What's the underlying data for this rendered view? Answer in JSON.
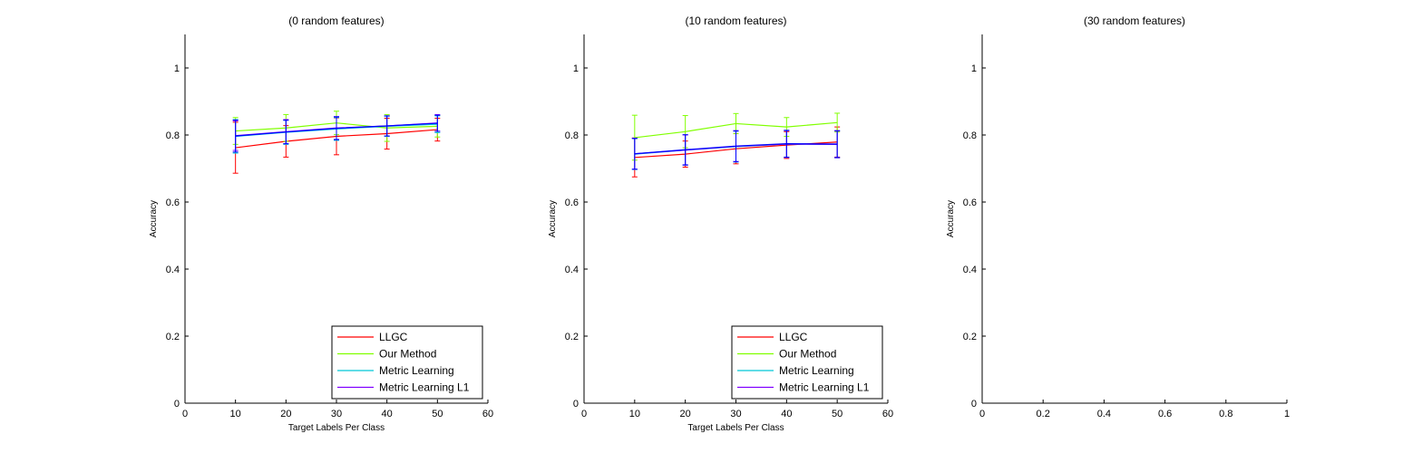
{
  "chart_data": [
    {
      "type": "line",
      "title": "(0 random features)",
      "xlabel": "Target Labels Per Class",
      "ylabel": "Accuracy",
      "xlim": [
        0,
        60
      ],
      "ylim": [
        0,
        1.1
      ],
      "xticks": [
        "0",
        "10",
        "20",
        "30",
        "40",
        "50",
        "60"
      ],
      "yticks": [
        "0",
        "0.2",
        "0.4",
        "0.6",
        "0.8",
        "1"
      ],
      "xtick_values": [
        0,
        10,
        20,
        30,
        40,
        50,
        60
      ],
      "ytick_values": [
        0,
        0.2,
        0.4,
        0.6,
        0.8,
        1
      ],
      "grid": false,
      "legend": "bottom-right",
      "x": [
        10,
        20,
        30,
        40,
        50
      ],
      "series": [
        {
          "name": "LLGC",
          "color": "#ff0000",
          "values": [
            0.762,
            0.781,
            0.796,
            0.804,
            0.816
          ],
          "err": [
            0.076,
            0.047,
            0.055,
            0.046,
            0.034
          ]
        },
        {
          "name": "Our Method",
          "color": "#80ff00",
          "values": [
            0.812,
            0.821,
            0.836,
            0.821,
            0.826
          ],
          "err": [
            0.04,
            0.04,
            0.035,
            0.04,
            0.032
          ]
        },
        {
          "name": "Metric Learning",
          "color": "#00c8d8",
          "values": [
            0.796,
            0.808,
            0.818,
            0.826,
            0.832
          ],
          "err": [
            0.05,
            0.036,
            0.034,
            0.03,
            0.025
          ]
        },
        {
          "name": "Metric Learning L1",
          "color": "#7f00ff",
          "values": [
            0.798,
            0.81,
            0.821,
            0.827,
            0.836
          ],
          "err": [
            0.044,
            0.036,
            0.034,
            0.03,
            0.025
          ]
        },
        {
          "name": "",
          "color": "#0000ff",
          "values": [
            0.797,
            0.809,
            0.82,
            0.827,
            0.835
          ],
          "err": [
            0.048,
            0.035,
            0.034,
            0.03,
            0.024
          ]
        }
      ]
    },
    {
      "type": "line",
      "title": "(10 random features)",
      "xlabel": "Target Labels Per Class",
      "ylabel": "Accuracy",
      "xlim": [
        0,
        60
      ],
      "ylim": [
        0,
        1.1
      ],
      "xticks": [
        "0",
        "10",
        "20",
        "30",
        "40",
        "50",
        "60"
      ],
      "yticks": [
        "0",
        "0.2",
        "0.4",
        "0.6",
        "0.8",
        "1"
      ],
      "xtick_values": [
        0,
        10,
        20,
        30,
        40,
        50,
        60
      ],
      "ytick_values": [
        0,
        0.2,
        0.4,
        0.6,
        0.8,
        1
      ],
      "grid": false,
      "legend": "bottom-right",
      "x": [
        10,
        20,
        30,
        40,
        50
      ],
      "series": [
        {
          "name": "LLGC",
          "color": "#ff0000",
          "values": [
            0.733,
            0.743,
            0.759,
            0.77,
            0.779
          ],
          "err": [
            0.058,
            0.039,
            0.045,
            0.04,
            0.045
          ]
        },
        {
          "name": "Our Method",
          "color": "#80ff00",
          "values": [
            0.792,
            0.81,
            0.834,
            0.824,
            0.837
          ],
          "err": [
            0.067,
            0.048,
            0.03,
            0.028,
            0.028
          ]
        },
        {
          "name": "Metric Learning",
          "color": "#00c8d8",
          "values": [
            0.743,
            0.755,
            0.765,
            0.773,
            0.772
          ],
          "err": [
            0.046,
            0.045,
            0.046,
            0.04,
            0.04
          ]
        },
        {
          "name": "Metric Learning L1",
          "color": "#7f00ff",
          "values": [
            0.744,
            0.755,
            0.766,
            0.773,
            0.772
          ],
          "err": [
            0.046,
            0.045,
            0.046,
            0.04,
            0.04
          ]
        },
        {
          "name": "",
          "color": "#0000ff",
          "values": [
            0.744,
            0.756,
            0.767,
            0.774,
            0.773
          ],
          "err": [
            0.046,
            0.045,
            0.046,
            0.04,
            0.04
          ]
        }
      ]
    },
    {
      "type": "line",
      "title": "(30 random features)",
      "xlabel": "",
      "ylabel": "Accuracy",
      "xlim": [
        0,
        1
      ],
      "ylim": [
        0,
        1.1
      ],
      "xticks": [
        "0",
        "0.2",
        "0.4",
        "0.6",
        "0.8",
        "1"
      ],
      "yticks": [
        "0",
        "0.2",
        "0.4",
        "0.6",
        "0.8",
        "1"
      ],
      "xtick_values": [
        0,
        0.2,
        0.4,
        0.6,
        0.8,
        1
      ],
      "ytick_values": [
        0,
        0.2,
        0.4,
        0.6,
        0.8,
        1
      ],
      "grid": false,
      "legend": "",
      "x": [],
      "series": []
    }
  ]
}
